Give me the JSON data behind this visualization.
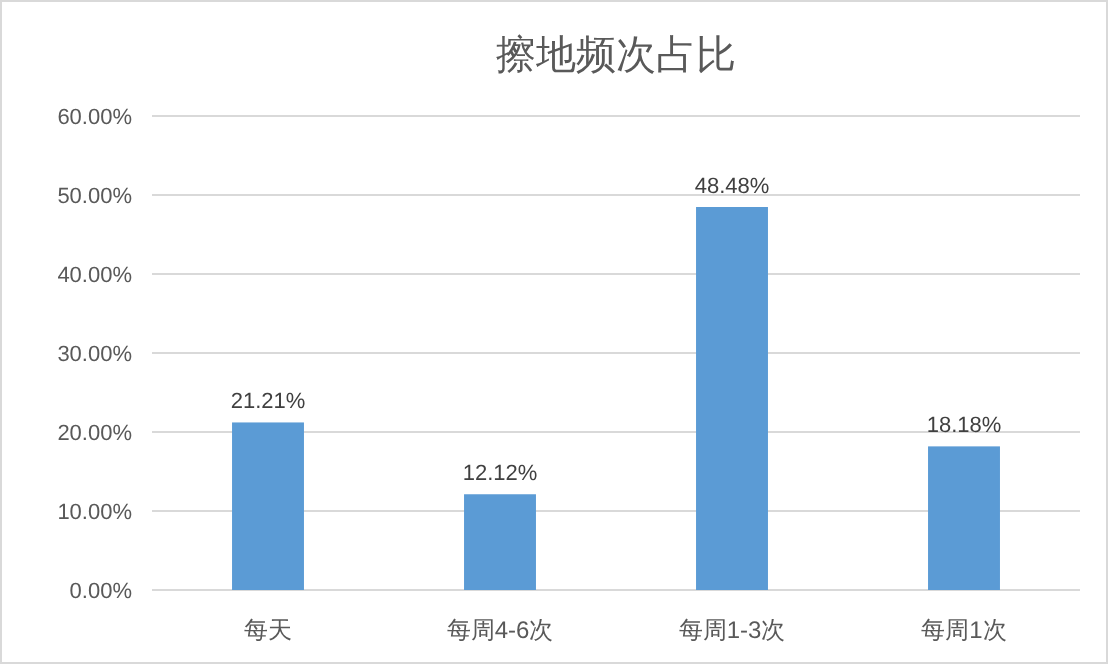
{
  "chart_data": {
    "type": "bar",
    "title": "擦地频次占比",
    "categories": [
      "每天",
      "每周4-6次",
      "每周1-3次",
      "每周1次"
    ],
    "values": [
      21.21,
      12.12,
      48.48,
      18.18
    ],
    "value_labels": [
      "21.21%",
      "12.12%",
      "48.48%",
      "18.18%"
    ],
    "color": "#5b9bd5",
    "ylim": [
      0,
      60
    ],
    "yticks": [
      {
        "value": 0,
        "label": "0.00%"
      },
      {
        "value": 10,
        "label": "10.00%"
      },
      {
        "value": 20,
        "label": "20.00%"
      },
      {
        "value": 30,
        "label": "30.00%"
      },
      {
        "value": 40,
        "label": "40.00%"
      },
      {
        "value": 50,
        "label": "50.00%"
      },
      {
        "value": 60,
        "label": "60.00%"
      }
    ],
    "grid": "y"
  }
}
